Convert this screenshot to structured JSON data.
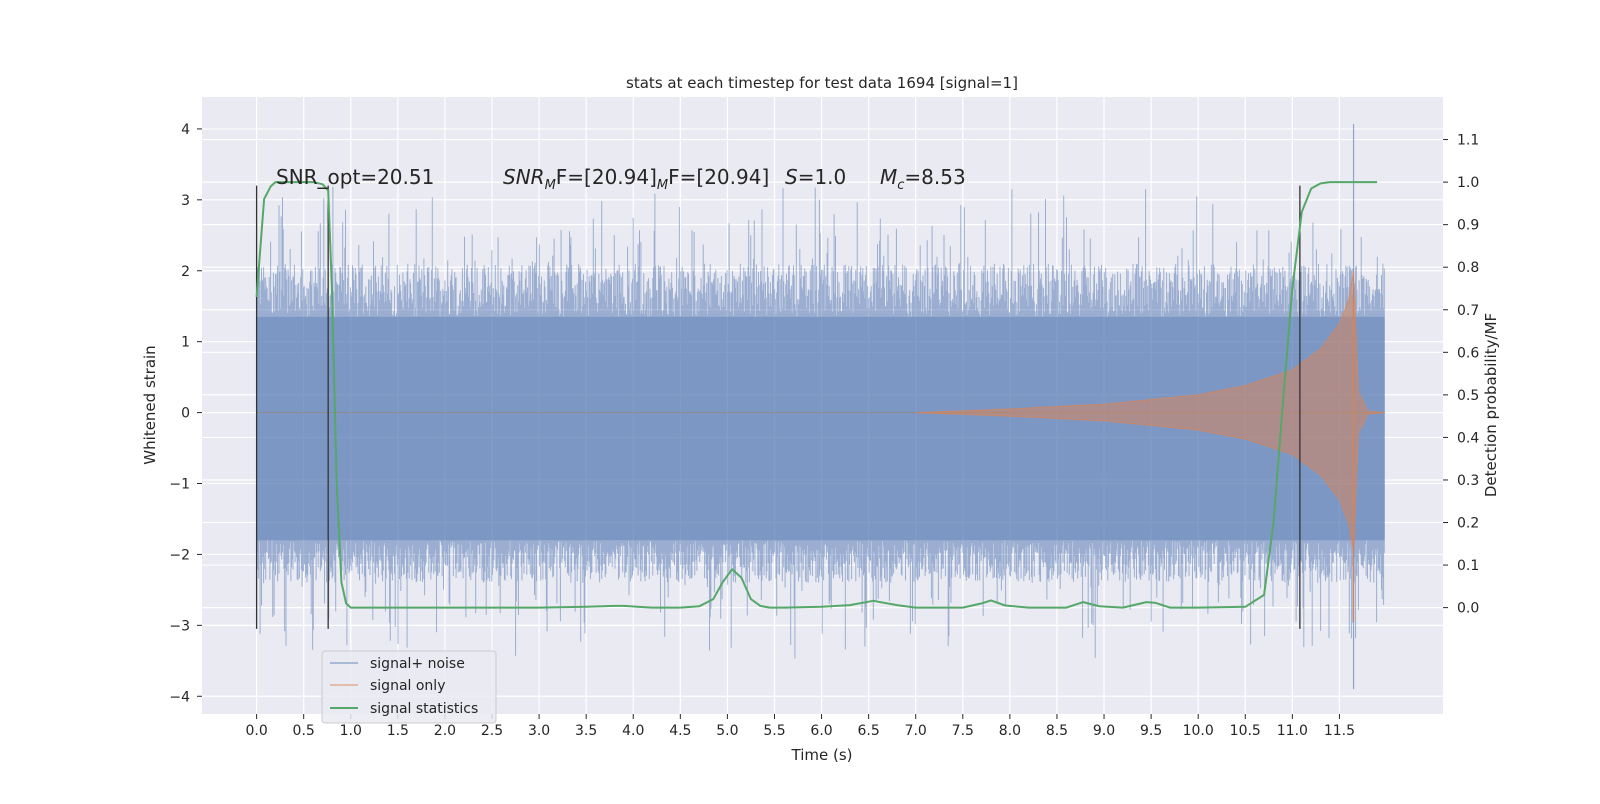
{
  "chart_data": {
    "type": "line",
    "title": "stats at each timestep for test data 1694 [signal=1]",
    "xlabel": "Time (s)",
    "ylabel_left": "Whitened strain",
    "ylabel_right": "Detection probability/MF",
    "xlim": [
      -0.58,
      12.6
    ],
    "ylim_left": [
      -4.25,
      4.45
    ],
    "ylim_right": [
      -0.25,
      1.2
    ],
    "x_ticks": [
      "0.0",
      "0.5",
      "1.0",
      "1.5",
      "2.0",
      "2.5",
      "3.0",
      "3.5",
      "4.0",
      "4.5",
      "5.0",
      "5.5",
      "6.0",
      "6.5",
      "7.0",
      "7.5",
      "8.0",
      "8.5",
      "9.0",
      "9.5",
      "10.0",
      "10.5",
      "11.0",
      "11.5"
    ],
    "y_ticks_left": [
      "4",
      "3",
      "2",
      "1",
      "0",
      "−1",
      "−2",
      "−3",
      "−4"
    ],
    "y_ticks_right": [
      "1.1",
      "1.0",
      "0.9",
      "0.8",
      "0.7",
      "0.6",
      "0.5",
      "0.4",
      "0.3",
      "0.2",
      "0.1",
      "0.0"
    ],
    "grid": true,
    "legend_position": "lower-left",
    "annotations": {
      "snr_opt": "SNR_opt=20.51",
      "snr_mf_base": "SNR",
      "snr_mf_sub": "M",
      "snr_mf_rest": "F=[20.94]",
      "s_var": "S",
      "s_rest": "=1.0",
      "mc_var": "M",
      "mc_sub": "c",
      "mc_rest": "=8.53"
    },
    "segment_markers_x": [
      0.0,
      0.76,
      11.08
    ],
    "series": [
      {
        "name": "signal+ noise",
        "color": "#4c72b0",
        "axis": "left",
        "x_range": [
          0.0,
          11.98
        ],
        "envelope_core": [
          -1.8,
          1.35
        ],
        "peak_max": 4.07,
        "peak_min": -3.9
      },
      {
        "name": "signal only",
        "color": "#dd8452",
        "axis": "left",
        "x": [
          7.0,
          8.0,
          9.0,
          10.0,
          10.5,
          11.0,
          11.3,
          11.5,
          11.6,
          11.65,
          11.7,
          11.8,
          11.98
        ],
        "amplitude": [
          0.0,
          0.05,
          0.12,
          0.25,
          0.38,
          0.6,
          0.9,
          1.25,
          1.6,
          2.0,
          0.3,
          0.02,
          0.0
        ]
      },
      {
        "name": "signal statistics",
        "color": "#55a868",
        "axis": "right",
        "x": [
          0.0,
          0.08,
          0.15,
          0.2,
          0.3,
          0.45,
          0.6,
          0.7,
          0.76,
          0.8,
          0.85,
          0.9,
          0.95,
          1.0,
          1.2,
          1.5,
          2.0,
          2.5,
          3.0,
          3.5,
          3.8,
          3.9,
          4.2,
          4.5,
          4.7,
          4.85,
          4.95,
          5.05,
          5.15,
          5.25,
          5.35,
          5.45,
          5.6,
          6.0,
          6.3,
          6.55,
          6.8,
          7.0,
          7.5,
          7.7,
          7.8,
          7.95,
          8.2,
          8.6,
          8.78,
          8.95,
          9.2,
          9.45,
          9.55,
          9.7,
          10.0,
          10.5,
          10.7,
          10.8,
          10.9,
          11.0,
          11.1,
          11.2,
          11.3,
          11.4,
          11.5,
          11.65,
          11.9
        ],
        "y": [
          0.73,
          0.96,
          0.99,
          1.0,
          1.0,
          1.0,
          1.0,
          0.995,
          0.98,
          0.75,
          0.3,
          0.06,
          0.01,
          0.0,
          0.0,
          0.0,
          0.0,
          0.0,
          0.0,
          0.002,
          0.004,
          0.004,
          0.0,
          0.0,
          0.003,
          0.02,
          0.06,
          0.09,
          0.07,
          0.02,
          0.004,
          0.0,
          0.0,
          0.002,
          0.006,
          0.016,
          0.006,
          0.0,
          0.0,
          0.01,
          0.017,
          0.005,
          0.0,
          0.0,
          0.013,
          0.003,
          0.0,
          0.013,
          0.011,
          0.0,
          0.0,
          0.002,
          0.03,
          0.2,
          0.48,
          0.75,
          0.93,
          0.985,
          0.997,
          1.0,
          1.0,
          1.0,
          1.0
        ]
      }
    ]
  }
}
